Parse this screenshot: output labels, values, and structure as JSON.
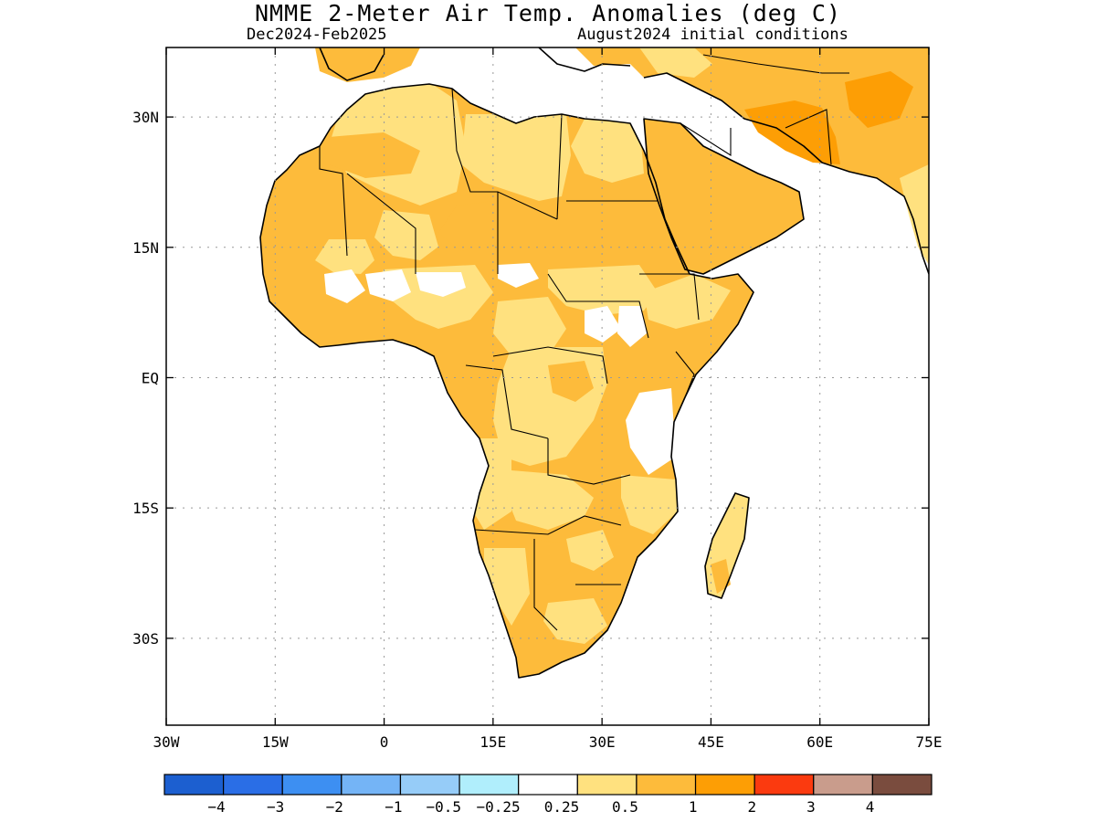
{
  "title": "NMME 2-Meter Air Temp. Anomalies (deg C)",
  "subtitle_left": "Dec2024-Feb2025",
  "subtitle_right": "August2024 initial conditions",
  "map": {
    "lon_range": [
      -30,
      75
    ],
    "lat_range": [
      -40,
      38
    ],
    "lon_ticks": [
      {
        "value": -30,
        "label": "30W"
      },
      {
        "value": -15,
        "label": "15W"
      },
      {
        "value": 0,
        "label": "0"
      },
      {
        "value": 15,
        "label": "15E"
      },
      {
        "value": 30,
        "label": "30E"
      },
      {
        "value": 45,
        "label": "45E"
      },
      {
        "value": 60,
        "label": "60E"
      },
      {
        "value": 75,
        "label": "75E"
      }
    ],
    "lat_ticks": [
      {
        "value": 30,
        "label": "30N"
      },
      {
        "value": 15,
        "label": "15N"
      },
      {
        "value": 0,
        "label": "EQ"
      },
      {
        "value": -15,
        "label": "15S"
      },
      {
        "value": -30,
        "label": "30S"
      }
    ],
    "grid": true
  },
  "colorbar": {
    "colors": [
      "#1c5fd0",
      "#2a6ee6",
      "#3d8ff2",
      "#74b4f6",
      "#96ccf8",
      "#b0eefc",
      "#ffffff",
      "#ffe17f",
      "#fdbb3b",
      "#fd9e05",
      "#fb3a0f",
      "#c99c8c",
      "#7a4c3e"
    ],
    "labels": [
      "-4",
      "-3",
      "-2",
      "-1",
      "-0.5",
      "-0.25",
      "0.25",
      "0.5",
      "1",
      "2",
      "3",
      "4"
    ]
  },
  "colors": {
    "anomaly_0_25_to_0_5": "#ffe17f",
    "anomaly_0_5_to_1": "#fdbb3b",
    "anomaly_1_to_2": "#fd9e05",
    "neutral": "#ffffff"
  }
}
